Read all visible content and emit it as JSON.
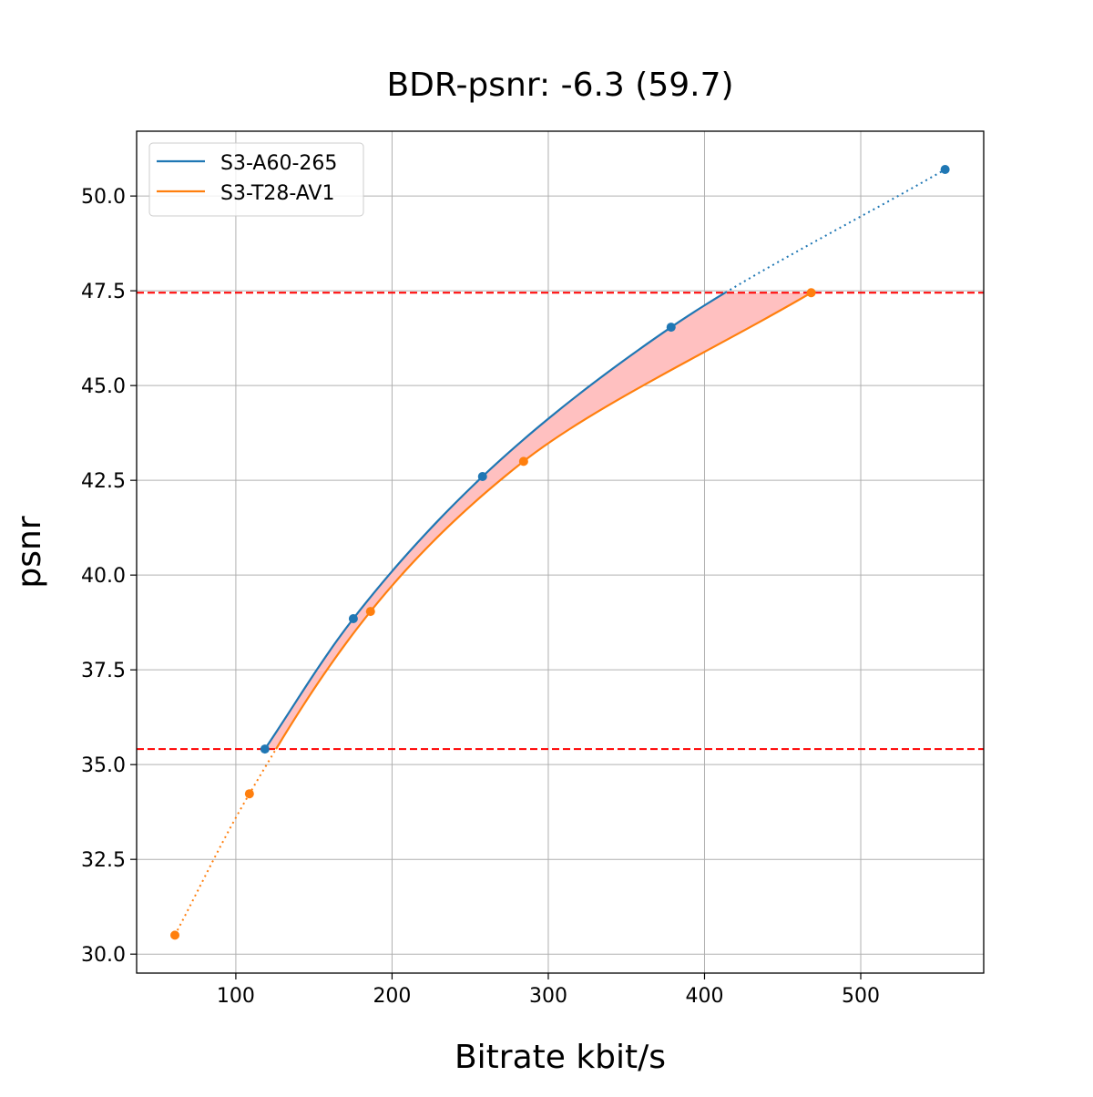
{
  "chart_data": {
    "type": "line",
    "title": "BDR-psnr: -6.3 (59.7)",
    "xlabel": "Bitrate kbit/s",
    "ylabel": "psnr",
    "xlim": [
      36.5,
      578.7
    ],
    "ylim": [
      29.5,
      51.71
    ],
    "xticks": [
      100,
      200,
      300,
      400,
      500
    ],
    "xtick_labels": [
      "100",
      "200",
      "300",
      "400",
      "500"
    ],
    "yticks": [
      30.0,
      32.5,
      35.0,
      37.5,
      40.0,
      42.5,
      45.0,
      47.5,
      50.0
    ],
    "ytick_labels": [
      "30.0",
      "32.5",
      "35.0",
      "37.5",
      "40.0",
      "42.5",
      "45.0",
      "47.5",
      "50.0"
    ],
    "grid": true,
    "legend_position": "top-left",
    "series": [
      {
        "name": "S3-A60-265",
        "color": "#1f77b4",
        "x": [
          118.6,
          175.2,
          257.9,
          378.6,
          554.0
        ],
        "y": [
          35.41,
          38.85,
          42.6,
          46.54,
          50.7
        ]
      },
      {
        "name": "S3-T28-AV1",
        "color": "#ff7f0e",
        "x": [
          61.0,
          108.7,
          186.2,
          284.2,
          468.3
        ],
        "y": [
          30.5,
          34.23,
          39.04,
          43.0,
          47.45
        ]
      }
    ],
    "reference_lines": [
      {
        "axis": "y",
        "value": 35.41,
        "color": "#ff0000",
        "style": "dashed"
      },
      {
        "axis": "y",
        "value": 47.45,
        "color": "#ff0000",
        "style": "dashed"
      }
    ],
    "fill_between": {
      "ymin": 35.41,
      "ymax": 47.45,
      "color": "#ffc0c0"
    }
  }
}
